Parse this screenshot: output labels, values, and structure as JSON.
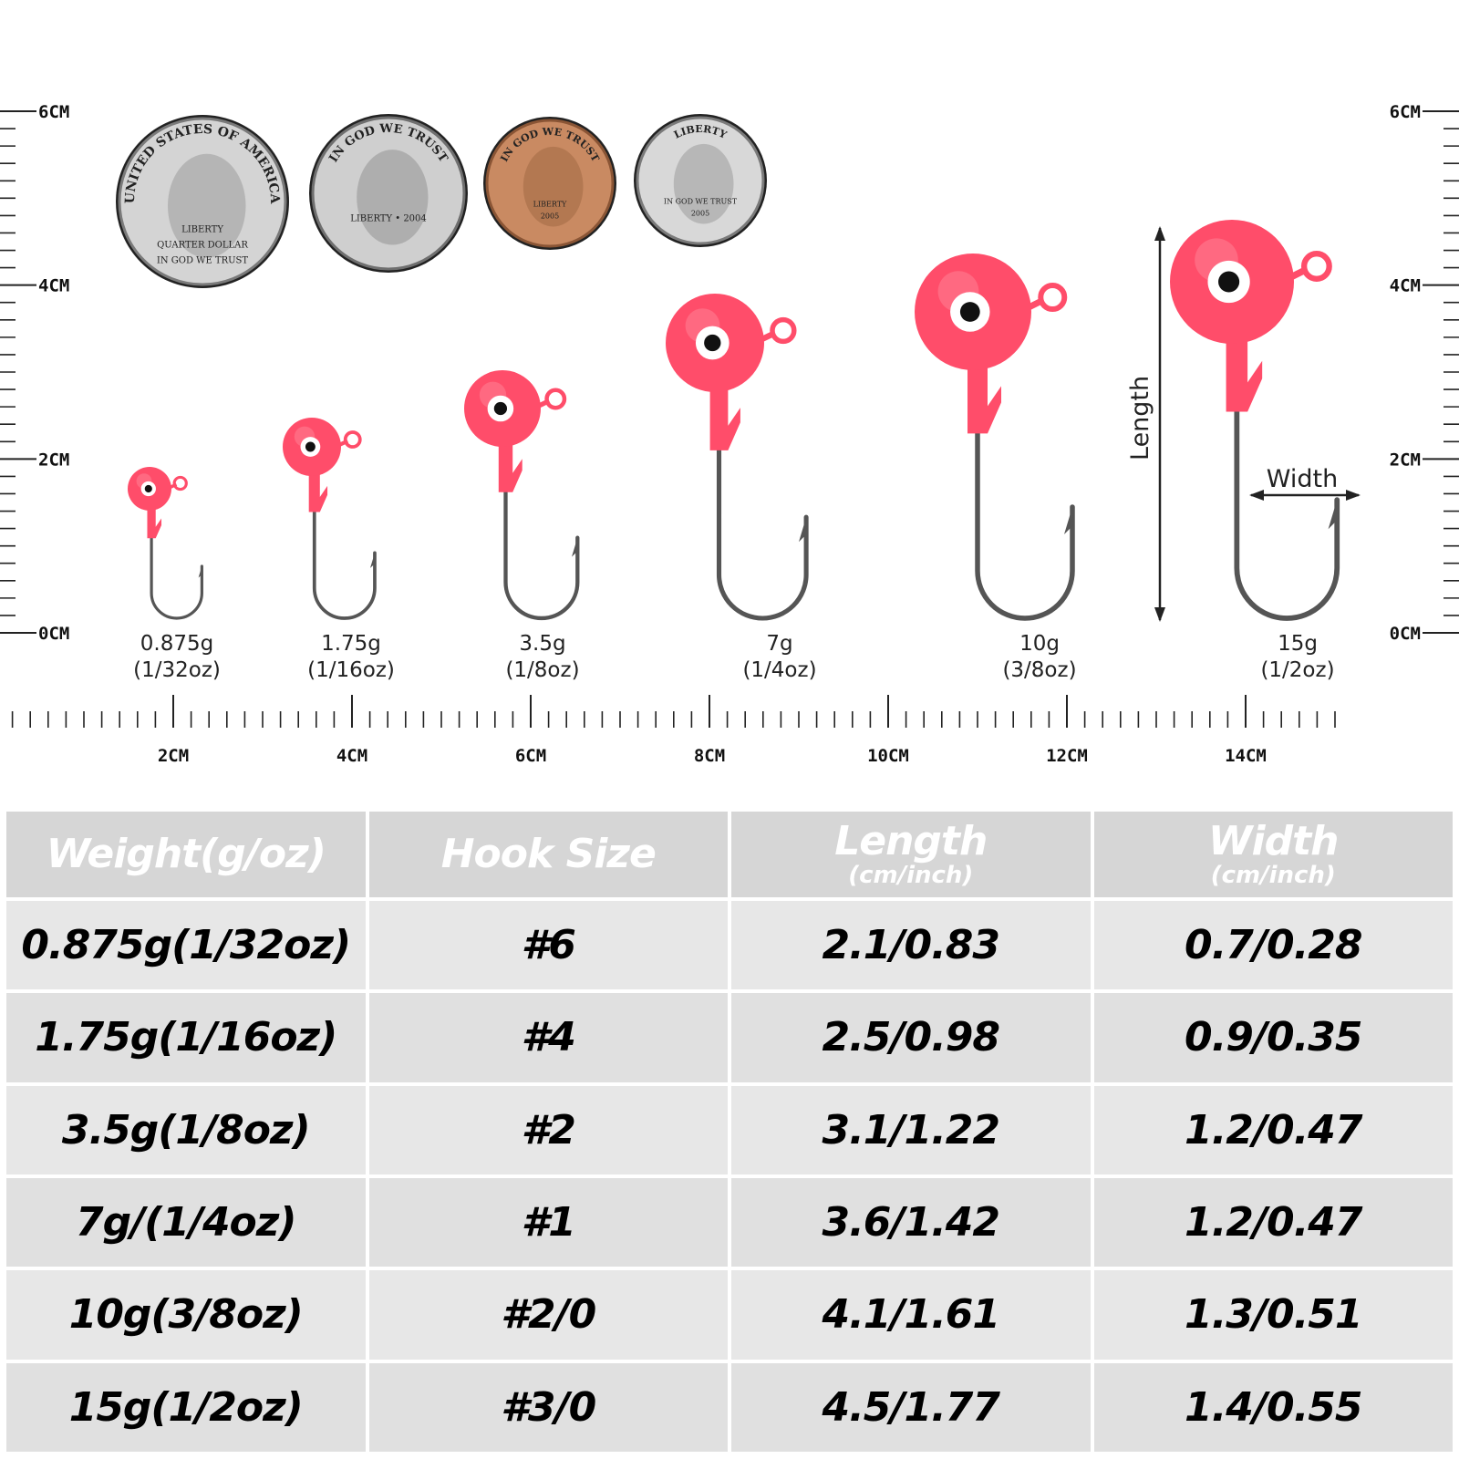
{
  "left_scale": {
    "labels": [
      "6CM",
      "4CM",
      "2CM",
      "0CM"
    ]
  },
  "right_scale": {
    "labels": [
      "6CM",
      "4CM",
      "2CM",
      "0CM"
    ]
  },
  "bottom_scale": {
    "labels": [
      "2CM",
      "4CM",
      "6CM",
      "8CM",
      "10CM",
      "12CM",
      "14CM"
    ]
  },
  "coins": [
    {
      "name": "quarter",
      "texts": [
        "UNITED STATES OF AMERICA",
        "LIBERTY",
        "QUARTER DOLLAR",
        "IN GOD WE TRUST"
      ]
    },
    {
      "name": "nickel",
      "texts": [
        "IN GOD WE TRUST",
        "LIBERTY • 2004"
      ]
    },
    {
      "name": "penny",
      "texts": [
        "IN GOD WE TRUST",
        "LIBERTY",
        "2005"
      ]
    },
    {
      "name": "dime",
      "texts": [
        "LIBERTY",
        "IN GOD WE TRUST",
        "2005"
      ]
    }
  ],
  "lures": [
    {
      "weight": "0.875g",
      "oz": "(1/32oz)",
      "color": "#ff4d6a"
    },
    {
      "weight": "1.75g",
      "oz": "(1/16oz)",
      "color": "#ff4d6a"
    },
    {
      "weight": "3.5g",
      "oz": "(1/8oz)",
      "color": "#ff4d6a"
    },
    {
      "weight": "7g",
      "oz": "(1/4oz)",
      "color": "#ff4d6a"
    },
    {
      "weight": "10g",
      "oz": "(3/8oz)",
      "color": "#ff4d6a"
    },
    {
      "weight": "15g",
      "oz": "(1/2oz)",
      "color": "#ff4d6a"
    }
  ],
  "dimension_labels": {
    "length": "Length",
    "width": "Width"
  },
  "table": {
    "headers": [
      {
        "label": "Weight(g/oz)",
        "unit": ""
      },
      {
        "label": "Hook Size",
        "unit": ""
      },
      {
        "label": "Length",
        "unit": "(cm/inch)"
      },
      {
        "label": "Width",
        "unit": "(cm/inch)"
      }
    ],
    "rows": [
      [
        "0.875g(1/32oz)",
        "#6",
        "2.1/0.83",
        "0.7/0.28"
      ],
      [
        "1.75g(1/16oz)",
        "#4",
        "2.5/0.98",
        "0.9/0.35"
      ],
      [
        "3.5g(1/8oz)",
        "#2",
        "3.1/1.22",
        "1.2/0.47"
      ],
      [
        "7g/(1/4oz)",
        "#1",
        "3.6/1.42",
        "1.2/0.47"
      ],
      [
        "10g(3/8oz)",
        "#2/0",
        "4.1/1.61",
        "1.3/0.51"
      ],
      [
        "15g(1/2oz)",
        "#3/0",
        "4.5/1.77",
        "1.4/0.55"
      ]
    ]
  },
  "colors": {
    "head": "#ff4d6a",
    "hook": "#555555",
    "header_bg": "#d6d6d6",
    "row_bg": "#e7e7e7"
  }
}
